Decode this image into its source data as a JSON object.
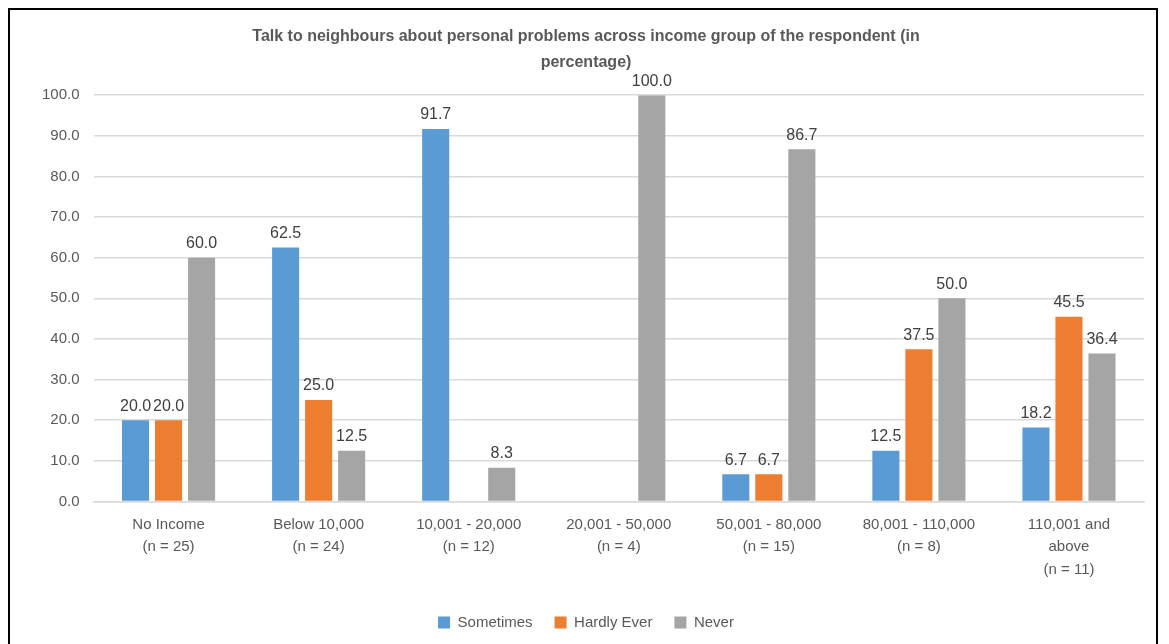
{
  "chart_data": {
    "type": "bar",
    "title": "Talk to neighbours about personal problems across income group of the respondent (in percentage)",
    "categories": [
      "No Income\n(n = 25)",
      "Below 10,000\n(n = 24)",
      "10,001 - 20,000\n(n = 12)",
      "20,001 - 50,000\n(n = 4)",
      "50,001 - 80,000\n(n = 15)",
      "80,001 - 110,000\n(n = 8)",
      "110,001 and\nabove\n(n = 11)"
    ],
    "series": [
      {
        "name": "Sometimes",
        "color": "#5b9bd5",
        "values": [
          20,
          62.5,
          91.7,
          null,
          6.7,
          12.5,
          18.2
        ],
        "value_labels": [
          "20.0",
          "62.5",
          "91.7",
          null,
          "6.7",
          "12.5",
          "18.2"
        ]
      },
      {
        "name": "Hardly Ever",
        "color": "#ed7d31",
        "values": [
          20,
          25,
          null,
          null,
          6.7,
          37.5,
          45.5
        ],
        "value_labels": [
          "20.0",
          "25.0",
          null,
          null,
          "6.7",
          "37.5",
          "45.5"
        ]
      },
      {
        "name": "Never",
        "color": "#a5a5a5",
        "values": [
          60,
          12.5,
          8.3,
          100,
          86.7,
          50,
          36.4
        ],
        "value_labels": [
          "60.0",
          "12.5",
          "8.3",
          "100.0",
          "86.7",
          "50.0",
          "36.4"
        ]
      }
    ],
    "ylim": [
      0,
      100
    ],
    "yticks": [
      {
        "value": 0,
        "label": "0.0"
      },
      {
        "value": 10,
        "label": "10.0"
      },
      {
        "value": 20,
        "label": "20.0"
      },
      {
        "value": 30,
        "label": "30.0"
      },
      {
        "value": 40,
        "label": "40.0"
      },
      {
        "value": 50,
        "label": "50.0"
      },
      {
        "value": 60,
        "label": "60.0"
      },
      {
        "value": 70,
        "label": "70.0"
      },
      {
        "value": 80,
        "label": "80.0"
      },
      {
        "value": 90,
        "label": "90.0"
      },
      {
        "value": 100,
        "label": "100.0"
      }
    ],
    "grid": "y",
    "legend": "bottom"
  }
}
